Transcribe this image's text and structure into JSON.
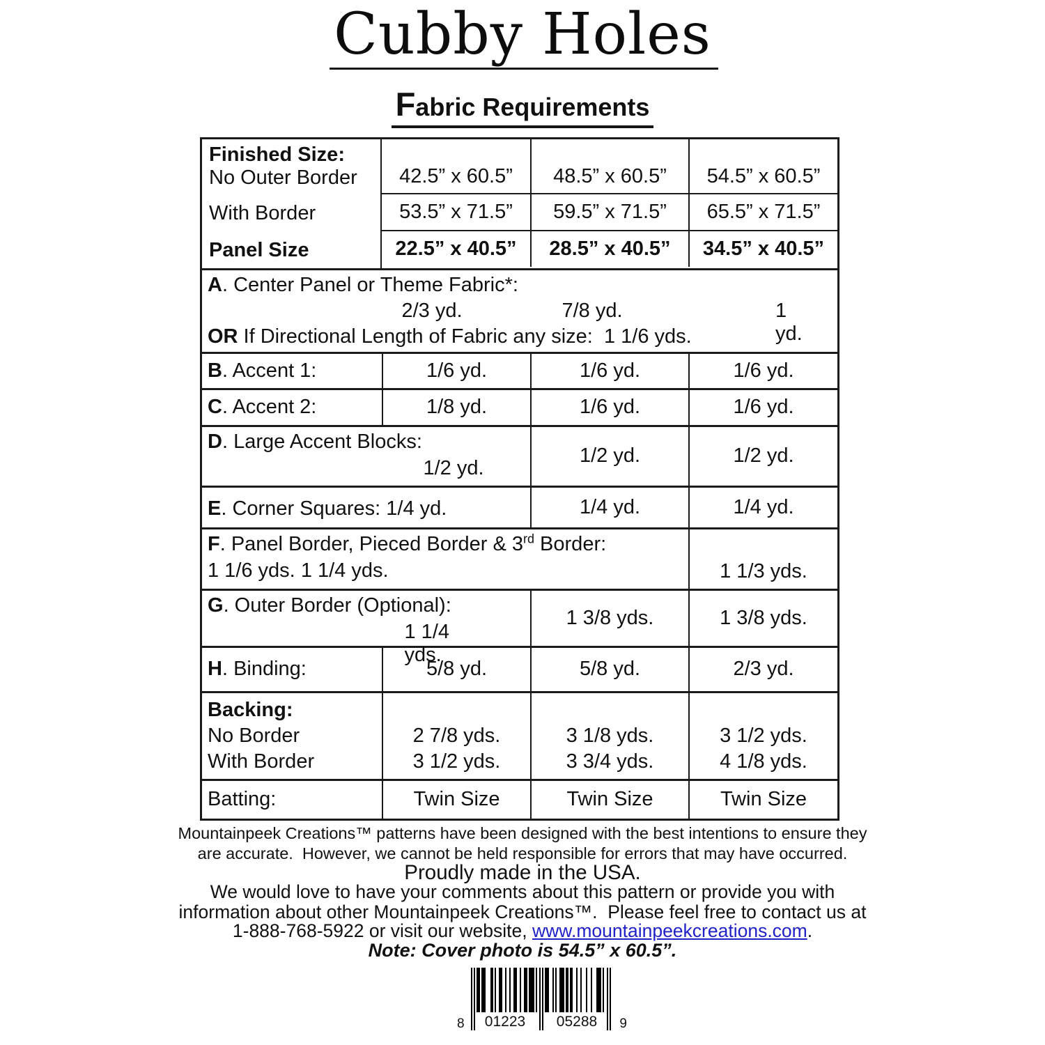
{
  "header": {
    "title": "Cubby Holes",
    "subtitle_initial": "F",
    "subtitle_rest": "abric Requirements"
  },
  "table": {
    "finished": {
      "label_bold": "Finished Size:",
      "label_sub": "No Outer Border",
      "row1_values": [
        "42.5” x 60.5”",
        "48.5” x 60.5”",
        "54.5” x 60.5”"
      ],
      "with_border_label": "With Border",
      "row2_values": [
        "53.5” x 71.5”",
        "59.5” x 71.5”",
        "65.5” x 71.5”"
      ],
      "panel_label": "Panel Size",
      "row3_values": [
        "22.5” x 40.5”",
        "28.5” x 40.5”",
        "34.5” x 40.5”"
      ]
    },
    "a": {
      "prefix": "A",
      "label": ". Center Panel or Theme Fabric*:",
      "v1": "2/3 yd.",
      "v2": "7/8 yd.",
      "v3": "1 yd.",
      "or_prefix": "OR",
      "or_text": " If Directional Length of Fabric any size:  1 1/6 yds."
    },
    "b": {
      "prefix": "B",
      "label": ". Accent 1:",
      "values": [
        "1/6 yd.",
        "1/6 yd.",
        "1/6 yd."
      ]
    },
    "c": {
      "prefix": "C",
      "label": ". Accent 2:",
      "values": [
        "1/8 yd.",
        "1/6 yd.",
        "1/6 yd."
      ]
    },
    "d": {
      "prefix": "D",
      "label": ". Large Accent Blocks:",
      "v1": "1/2 yd.",
      "values": [
        "1/2 yd.",
        "1/2 yd."
      ]
    },
    "e": {
      "prefix": "E",
      "label": ". Corner Squares: 1/4 yd.",
      "values": [
        "1/4 yd.",
        "1/4 yd."
      ]
    },
    "f": {
      "prefix": "F",
      "label_pre": ". Panel Border, Pieced Border & 3",
      "sup": "rd",
      "label_post": " Border:",
      "v1": "1 1/6 yds.",
      "v2": "1 1/4 yds.",
      "v3": "1 1/3 yds."
    },
    "g": {
      "prefix": "G",
      "label": ". Outer Border (Optional):",
      "v1": "1 1/4 yds.",
      "values": [
        "1 3/8 yds.",
        "1 3/8 yds."
      ]
    },
    "h": {
      "prefix": "H",
      "label": ". Binding:",
      "values": [
        "5/8 yd.",
        "5/8 yd.",
        "2/3 yd."
      ]
    },
    "backing": {
      "title": "Backing:",
      "row1_label": "No Border",
      "row2_label": "With Border",
      "no_border": [
        "2 7/8 yds.",
        "3 1/8 yds.",
        "3 1/2 yds."
      ],
      "with_border": [
        "3 1/2 yds.",
        "3 3/4 yds.",
        "4 1/8 yds."
      ]
    },
    "batting": {
      "label": "Batting:",
      "values": [
        "Twin Size",
        "Twin Size",
        "Twin Size"
      ]
    }
  },
  "footer": {
    "disclaimer_line1": "Mountainpeek Creations™ patterns have been designed with the best intentions to ensure they",
    "disclaimer_line2": "are accurate.  However, we cannot be held responsible for errors that may have occurred.",
    "made_in": "Proudly made in the USA.",
    "comments_line1": "We would love to have your comments about this pattern or provide you with",
    "comments_line2": "information about other Mountainpeek Creations™.  Please feel free to contact us at",
    "contact_pre": "1-888-768-5922 or visit our website, ",
    "website": "www.mountainpeekcreations.com",
    "contact_post": ".",
    "note": "Note: Cover photo is 54.5” x 60.5”."
  },
  "barcode": {
    "left_digit": "8",
    "group1": "01223",
    "group2": "05288",
    "right_digit": "9"
  },
  "colors": {
    "link_blue": "#2121c8",
    "ink": "#111111"
  }
}
